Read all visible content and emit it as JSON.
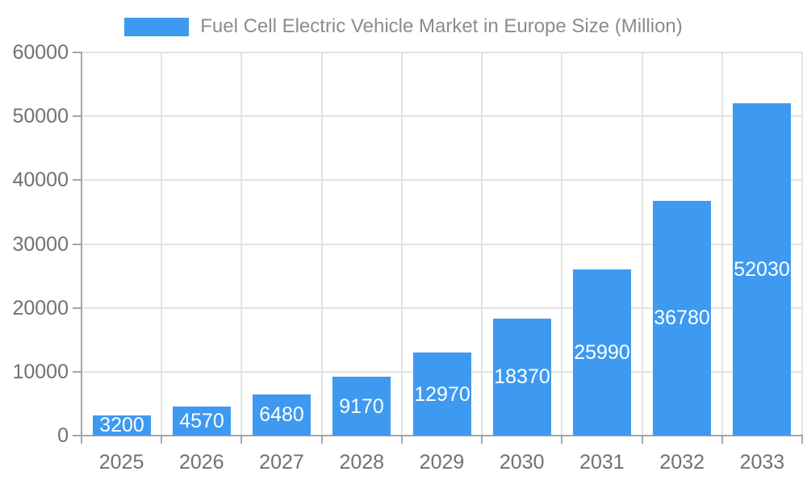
{
  "chart_data": {
    "type": "bar",
    "title": "Fuel Cell Electric Vehicle Market in Europe Size (Million)",
    "categories": [
      "2025",
      "2026",
      "2027",
      "2028",
      "2029",
      "2030",
      "2031",
      "2032",
      "2033"
    ],
    "values": [
      3200,
      4570,
      6480,
      9170,
      12970,
      18370,
      25990,
      36780,
      52030
    ],
    "xlabel": "",
    "ylabel": "",
    "ylim": [
      0,
      60000
    ],
    "ytick_interval": 10000,
    "ytick_labels": [
      "0",
      "10000",
      "20000",
      "30000",
      "40000",
      "50000",
      "60000"
    ],
    "grid": true,
    "legend_position": "top-center",
    "value_label_position": "inside-center",
    "colors": {
      "bar": "#3E9AF0",
      "value_label": "#FFFFFF",
      "axis_label": "#70707A",
      "axis_line": "#A6A6A6",
      "grid_line": "#E3E3E3",
      "legend_text": "#8C8C8C",
      "background": "#FFFFFF"
    }
  }
}
